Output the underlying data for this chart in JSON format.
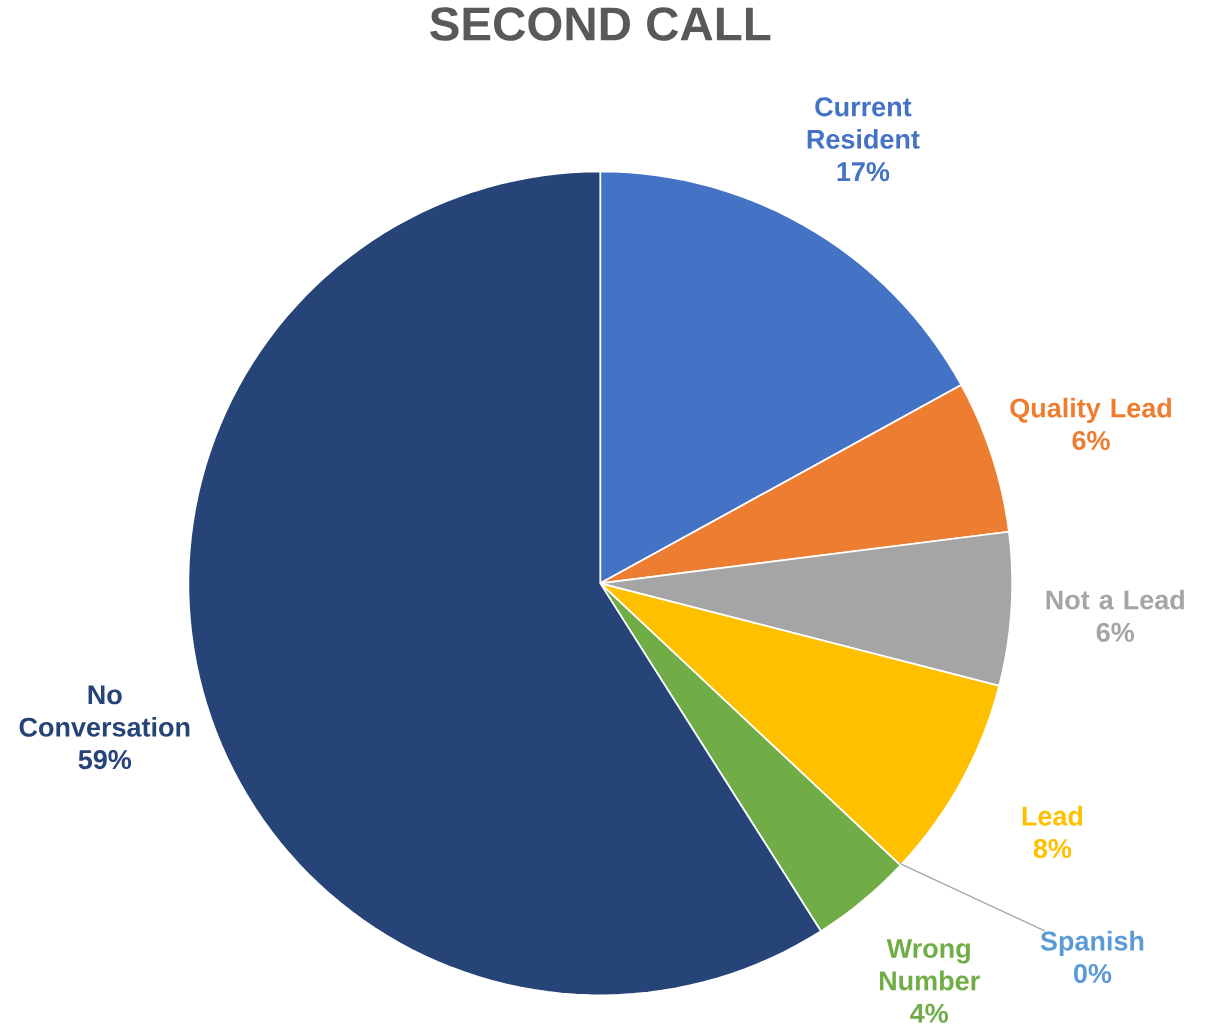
{
  "chart_data": {
    "type": "pie",
    "title": "SECOND CALL",
    "categories": [
      "Current Resident",
      "Quality Lead",
      "Not a Lead",
      "Lead",
      "Spanish",
      "Wrong Number",
      "No Conversation"
    ],
    "values": [
      17,
      6,
      6,
      8,
      0,
      4,
      59
    ],
    "value_labels": [
      "17%",
      "6%",
      "6%",
      "8%",
      "0%",
      "4%",
      "59%"
    ],
    "colors": [
      "#4472c4",
      "#ed7d31",
      "#a5a5a5",
      "#ffc000",
      "#5b9bd5",
      "#70ad47",
      "#264478"
    ]
  }
}
